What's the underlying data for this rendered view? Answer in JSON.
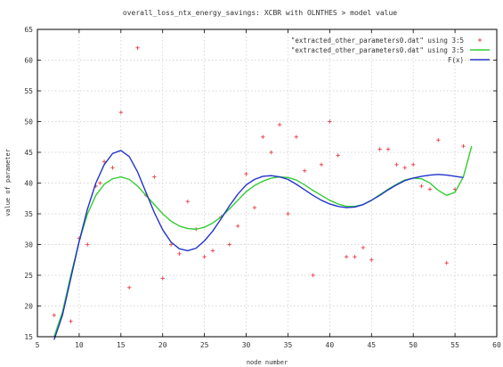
{
  "chart_data": {
    "type": "scatter",
    "title": "overall_loss_ntx_energy_savings: XCBR with OLNTHES > model value",
    "xlabel": "node number",
    "ylabel": "value of parameter",
    "xlim": [
      5,
      60
    ],
    "ylim": [
      15,
      65
    ],
    "xticks": [
      "5",
      "10",
      "15",
      "20",
      "25",
      "30",
      "35",
      "40",
      "45",
      "50",
      "55",
      "60"
    ],
    "yticks": [
      "15",
      "20",
      "25",
      "30",
      "35",
      "40",
      "45",
      "50",
      "55",
      "60",
      "65"
    ],
    "grid": true,
    "legend_position": "top-right",
    "series": [
      {
        "name": "\"extracted_other_parameters0.dat\" using 3:5",
        "kind": "points",
        "color": "#e8414a",
        "points": [
          [
            7,
            18.5
          ],
          [
            9,
            17.5
          ],
          [
            10,
            31
          ],
          [
            11,
            30
          ],
          [
            12,
            39.5
          ],
          [
            12.5,
            40
          ],
          [
            13,
            43.5
          ],
          [
            14,
            42.5
          ],
          [
            15,
            51.5
          ],
          [
            16,
            23
          ],
          [
            17,
            62
          ],
          [
            18,
            38
          ],
          [
            19,
            41
          ],
          [
            20,
            24.5
          ],
          [
            21,
            30
          ],
          [
            22,
            28.5
          ],
          [
            23,
            37
          ],
          [
            24,
            32.5
          ],
          [
            25,
            28
          ],
          [
            26,
            29
          ],
          [
            27,
            34.5
          ],
          [
            28,
            30
          ],
          [
            29,
            33
          ],
          [
            30,
            41.5
          ],
          [
            31,
            36
          ],
          [
            32,
            47.5
          ],
          [
            33,
            45
          ],
          [
            34,
            49.5
          ],
          [
            35,
            35
          ],
          [
            36,
            47.5
          ],
          [
            37,
            42
          ],
          [
            38,
            25
          ],
          [
            39,
            43
          ],
          [
            40,
            50
          ],
          [
            41,
            44.5
          ],
          [
            42,
            28
          ],
          [
            43,
            28
          ],
          [
            44,
            29.5
          ],
          [
            45,
            27.5
          ],
          [
            46,
            45.5
          ],
          [
            47,
            45.5
          ],
          [
            48,
            43
          ],
          [
            49,
            42.5
          ],
          [
            50,
            43
          ],
          [
            51,
            39.5
          ],
          [
            52,
            39
          ],
          [
            53,
            47
          ],
          [
            54,
            27
          ],
          [
            55,
            39
          ],
          [
            56,
            46
          ]
        ]
      },
      {
        "name": "\"extracted_other_parameters0.dat\" using 3:5",
        "kind": "line",
        "color": "#33cc33",
        "points": [
          [
            7,
            15
          ],
          [
            8,
            19
          ],
          [
            9,
            25
          ],
          [
            10,
            30.5
          ],
          [
            11,
            35
          ],
          [
            12,
            38
          ],
          [
            13,
            39.8
          ],
          [
            14,
            40.7
          ],
          [
            15,
            41
          ],
          [
            16,
            40.6
          ],
          [
            17,
            39.5
          ],
          [
            18,
            38
          ],
          [
            19,
            36.5
          ],
          [
            20,
            35
          ],
          [
            21,
            33.8
          ],
          [
            22,
            33
          ],
          [
            23,
            32.6
          ],
          [
            24,
            32.5
          ],
          [
            25,
            32.8
          ],
          [
            26,
            33.5
          ],
          [
            27,
            34.5
          ],
          [
            28,
            35.8
          ],
          [
            29,
            37.2
          ],
          [
            30,
            38.6
          ],
          [
            31,
            39.6
          ],
          [
            32,
            40.3
          ],
          [
            33,
            40.8
          ],
          [
            34,
            41
          ],
          [
            35,
            40.9
          ],
          [
            36,
            40.5
          ],
          [
            37,
            39.7
          ],
          [
            38,
            38.8
          ],
          [
            39,
            38
          ],
          [
            40,
            37.2
          ],
          [
            41,
            36.6
          ],
          [
            42,
            36.2
          ],
          [
            43,
            36.2
          ],
          [
            44,
            36.5
          ],
          [
            45,
            37.2
          ],
          [
            46,
            38.1
          ],
          [
            47,
            39
          ],
          [
            48,
            39.8
          ],
          [
            49,
            40.5
          ],
          [
            50,
            40.8
          ],
          [
            51,
            40.7
          ],
          [
            52,
            40
          ],
          [
            53,
            38.8
          ],
          [
            54,
            38
          ],
          [
            55,
            38.5
          ],
          [
            56,
            41
          ],
          [
            57,
            46
          ]
        ]
      },
      {
        "name": "F(x)",
        "kind": "line",
        "color": "#2233cc",
        "points": [
          [
            7,
            14.5
          ],
          [
            8,
            18.5
          ],
          [
            9,
            24.5
          ],
          [
            10,
            30.5
          ],
          [
            11,
            35.8
          ],
          [
            12,
            40
          ],
          [
            13,
            43
          ],
          [
            14,
            44.8
          ],
          [
            15,
            45.3
          ],
          [
            16,
            44.3
          ],
          [
            17,
            41.8
          ],
          [
            18,
            38.5
          ],
          [
            19,
            35.2
          ],
          [
            20,
            32.4
          ],
          [
            21,
            30.4
          ],
          [
            22,
            29.3
          ],
          [
            23,
            29
          ],
          [
            24,
            29.4
          ],
          [
            25,
            30.6
          ],
          [
            26,
            32.2
          ],
          [
            27,
            34.2
          ],
          [
            28,
            36.3
          ],
          [
            29,
            38.2
          ],
          [
            30,
            39.7
          ],
          [
            31,
            40.6
          ],
          [
            32,
            41.1
          ],
          [
            33,
            41.2
          ],
          [
            34,
            41
          ],
          [
            35,
            40.6
          ],
          [
            36,
            39.8
          ],
          [
            37,
            38.9
          ],
          [
            38,
            38
          ],
          [
            39,
            37.2
          ],
          [
            40,
            36.6
          ],
          [
            41,
            36.2
          ],
          [
            42,
            36
          ],
          [
            43,
            36.1
          ],
          [
            44,
            36.5
          ],
          [
            45,
            37.2
          ],
          [
            46,
            38
          ],
          [
            47,
            38.9
          ],
          [
            48,
            39.7
          ],
          [
            49,
            40.4
          ],
          [
            50,
            40.8
          ],
          [
            51,
            41.1
          ],
          [
            52,
            41.3
          ],
          [
            53,
            41.4
          ],
          [
            54,
            41.3
          ],
          [
            55,
            41.1
          ],
          [
            56,
            40.9
          ]
        ]
      }
    ]
  }
}
